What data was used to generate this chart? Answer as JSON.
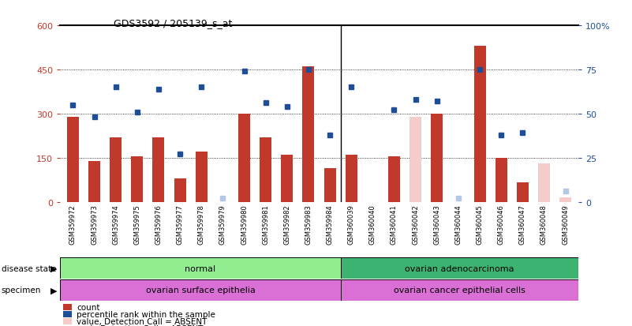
{
  "title": "GDS3592 / 205139_s_at",
  "samples": [
    "GSM359972",
    "GSM359973",
    "GSM359974",
    "GSM359975",
    "GSM359976",
    "GSM359977",
    "GSM359978",
    "GSM359979",
    "GSM359980",
    "GSM359981",
    "GSM359982",
    "GSM359983",
    "GSM359984",
    "GSM360039",
    "GSM360040",
    "GSM360041",
    "GSM360042",
    "GSM360043",
    "GSM360044",
    "GSM360045",
    "GSM360046",
    "GSM360047",
    "GSM360048",
    "GSM360049"
  ],
  "count_values": [
    290,
    140,
    220,
    155,
    220,
    80,
    170,
    0,
    300,
    220,
    160,
    460,
    115,
    160,
    0,
    155,
    0,
    300,
    0,
    530,
    150,
    65,
    0,
    0
  ],
  "count_absent": [
    false,
    false,
    false,
    false,
    false,
    false,
    false,
    false,
    false,
    false,
    false,
    false,
    false,
    false,
    false,
    false,
    true,
    false,
    false,
    false,
    false,
    false,
    true,
    true
  ],
  "count_absent_values": [
    0,
    0,
    0,
    0,
    0,
    0,
    0,
    0,
    0,
    0,
    0,
    0,
    0,
    0,
    0,
    0,
    290,
    0,
    0,
    0,
    0,
    0,
    130,
    15
  ],
  "rank_values": [
    55,
    48,
    65,
    51,
    64,
    27,
    65,
    0,
    74,
    56,
    54,
    75,
    38,
    65,
    0,
    52,
    58,
    57,
    0,
    75,
    38,
    39,
    0,
    0
  ],
  "rank_absent": [
    false,
    false,
    false,
    false,
    false,
    false,
    false,
    true,
    false,
    false,
    false,
    false,
    false,
    false,
    false,
    false,
    false,
    false,
    true,
    false,
    false,
    false,
    false,
    true
  ],
  "rank_absent_values": [
    0,
    0,
    0,
    0,
    0,
    0,
    0,
    2,
    0,
    0,
    0,
    0,
    0,
    0,
    0,
    0,
    0,
    0,
    2,
    0,
    0,
    0,
    0,
    6
  ],
  "split": 13,
  "disease_state_labels": [
    "normal",
    "ovarian adenocarcinoma"
  ],
  "specimen_labels": [
    "ovarian surface epithelia",
    "ovarian cancer epithelial cells"
  ],
  "bar_color": "#C0392B",
  "bar_absent_color": "#F4CCCA",
  "rank_color": "#1F4E96",
  "rank_absent_color": "#B4C7E7",
  "disease_color": "#90EE90",
  "specimen_color": "#DA70D6",
  "xtick_bg": "#C0C0C0",
  "right_ytick_color": "#1F4E96"
}
